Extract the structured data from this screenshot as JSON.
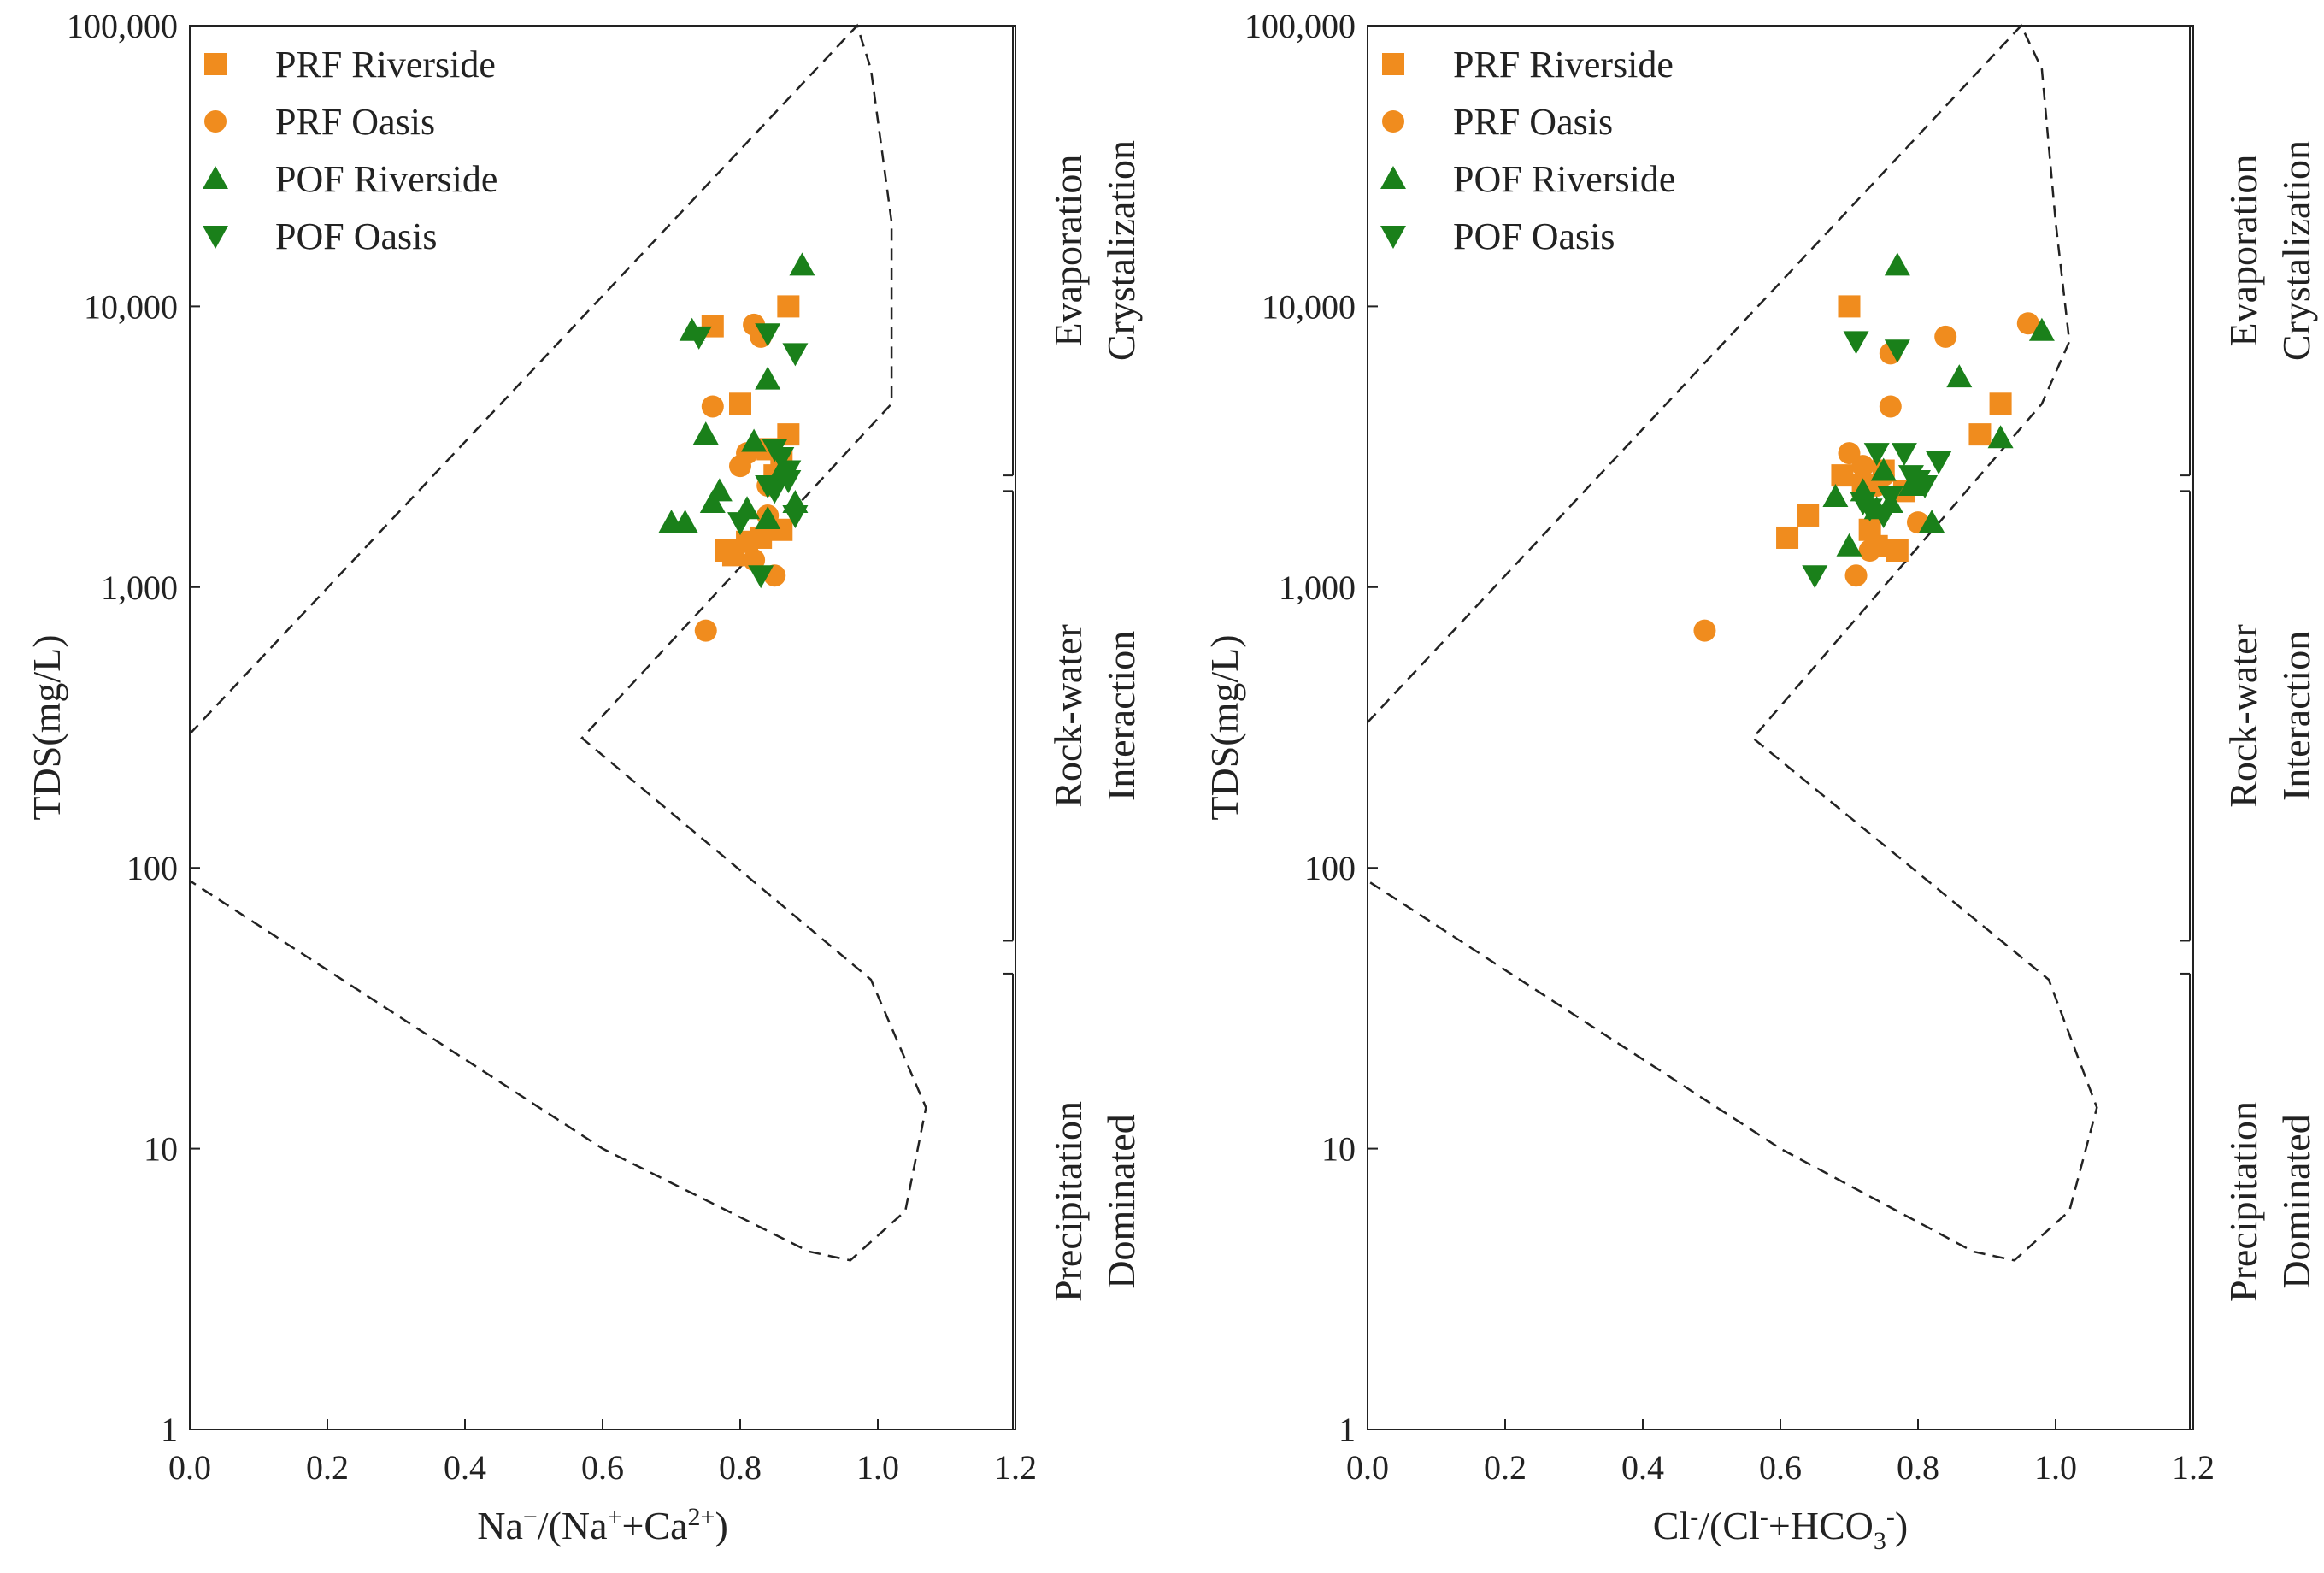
{
  "colors": {
    "orange": "#f08c1e",
    "green": "#1a801a",
    "axis": "#222222",
    "dash": "#222222"
  },
  "y_ticks": [
    1,
    10,
    100,
    1000,
    10000,
    100000
  ],
  "y_tick_labels": [
    "1",
    "10",
    "100",
    "1,000",
    "10,000",
    "100,000"
  ],
  "x_ticks": [
    0,
    0.2,
    0.4,
    0.6,
    0.8,
    1.0,
    1.2
  ],
  "x_tick_labels": [
    "0.0",
    "0.2",
    "0.4",
    "0.6",
    "0.8",
    "1.0",
    "1.2"
  ],
  "legend": [
    {
      "label": "PRF Riverside",
      "marker": "square",
      "color": "#f08c1e"
    },
    {
      "label": "PRF Oasis",
      "marker": "circle",
      "color": "#f08c1e"
    },
    {
      "label": "POF Riverside",
      "marker": "triangle-up",
      "color": "#1a801a"
    },
    {
      "label": "POF Oasis",
      "marker": "triangle-down",
      "color": "#1a801a"
    }
  ],
  "zones": [
    {
      "line1": "Evaporation",
      "line2": "Crystalization",
      "range": [
        2500,
        100000
      ]
    },
    {
      "line1": "Rock-water",
      "line2": "Interaction",
      "range": [
        55,
        2200
      ]
    },
    {
      "line1": "Precipitation",
      "line2": "Dominated",
      "range": [
        1,
        42
      ]
    }
  ],
  "chart_data": [
    {
      "type": "scatter",
      "ylabel": "TDS(mg/L)",
      "xlabel": {
        "base": "Na",
        "sup1": "−",
        "mid": "/(Na",
        "sup2": "+",
        "mid2": "+Ca",
        "sup3": "2+",
        "end": ")"
      },
      "xlim": [
        0,
        1.2
      ],
      "ylim": [
        1,
        100000
      ],
      "yscale": "log",
      "envelope": [
        [
          0.0,
          300
        ],
        [
          0.97,
          100000
        ],
        [
          0.99,
          70000
        ],
        [
          1.02,
          20000
        ],
        [
          1.02,
          4500
        ],
        [
          0.57,
          290
        ],
        [
          0.99,
          40
        ],
        [
          1.07,
          14
        ],
        [
          1.04,
          6
        ],
        [
          0.96,
          4
        ],
        [
          0.9,
          4.3
        ],
        [
          0.6,
          10
        ],
        [
          0.3,
          30
        ],
        [
          0.0,
          90
        ]
      ],
      "series": [
        {
          "name": "PRF Riverside",
          "marker": "square",
          "x": [
            0.76,
            0.87,
            0.8,
            0.87,
            0.84,
            0.78,
            0.79,
            0.81,
            0.86,
            0.83,
            0.85,
            0.86
          ],
          "y": [
            8500,
            10000,
            4500,
            3500,
            3100,
            1350,
            1300,
            1450,
            1600,
            1500,
            2500,
            2800
          ]
        },
        {
          "name": "PRF Oasis",
          "marker": "circle",
          "x": [
            0.82,
            0.83,
            0.76,
            0.81,
            0.8,
            0.84,
            0.78,
            0.82,
            0.85,
            0.75,
            0.86,
            0.84
          ],
          "y": [
            8600,
            7800,
            4400,
            3000,
            2700,
            2300,
            1350,
            1250,
            1100,
            700,
            2600,
            1800
          ]
        },
        {
          "name": "POF Riverside",
          "marker": "triangle-up",
          "x": [
            0.89,
            0.73,
            0.75,
            0.84,
            0.76,
            0.77,
            0.82,
            0.86,
            0.7,
            0.72,
            0.81,
            0.88,
            0.84
          ],
          "y": [
            14000,
            8200,
            3500,
            5500,
            2000,
            2200,
            3300,
            2600,
            1700,
            1700,
            1900,
            2000,
            1750
          ]
        },
        {
          "name": "POF Oasis",
          "marker": "triangle-down",
          "x": [
            0.74,
            0.84,
            0.88,
            0.85,
            0.86,
            0.87,
            0.84,
            0.88,
            0.83,
            0.87,
            0.85,
            0.8
          ],
          "y": [
            7800,
            8000,
            6800,
            3100,
            2900,
            2400,
            2300,
            1800,
            1100,
            2600,
            2200,
            1700
          ]
        }
      ]
    },
    {
      "type": "scatter",
      "ylabel": "TDS(mg/L)",
      "xlabel": {
        "base": "Cl",
        "sup1": "-",
        "mid": "/(Cl",
        "sup2": "-",
        "mid2": "+HCO",
        "sub3": "3",
        "sup3": "-",
        "end": ")"
      },
      "xlim": [
        0,
        1.2
      ],
      "ylim": [
        1,
        100000
      ],
      "yscale": "log",
      "envelope": [
        [
          0.0,
          330
        ],
        [
          0.95,
          100000
        ],
        [
          0.98,
          70000
        ],
        [
          1.0,
          20000
        ],
        [
          1.02,
          7500
        ],
        [
          0.98,
          4500
        ],
        [
          0.56,
          290
        ],
        [
          0.99,
          40
        ],
        [
          1.06,
          14
        ],
        [
          1.02,
          6
        ],
        [
          0.94,
          4
        ],
        [
          0.88,
          4.3
        ],
        [
          0.6,
          10
        ],
        [
          0.3,
          30
        ],
        [
          0.0,
          90
        ]
      ],
      "series": [
        {
          "name": "PRF Riverside",
          "marker": "square",
          "x": [
            0.7,
            0.92,
            0.89,
            0.64,
            0.61,
            0.74,
            0.77,
            0.69,
            0.72,
            0.75,
            0.78,
            0.73
          ],
          "y": [
            10000,
            4500,
            3500,
            1800,
            1500,
            1400,
            1350,
            2500,
            2300,
            2600,
            2200,
            1600
          ]
        },
        {
          "name": "PRF Oasis",
          "marker": "circle",
          "x": [
            0.96,
            0.84,
            0.76,
            0.76,
            0.7,
            0.72,
            0.71,
            0.73,
            0.8,
            0.49,
            0.75,
            0.74
          ],
          "y": [
            8700,
            7800,
            6800,
            4400,
            3000,
            2700,
            1100,
            1350,
            1700,
            700,
            2500,
            2300
          ]
        },
        {
          "name": "POF Riverside",
          "marker": "triangle-up",
          "x": [
            0.77,
            0.98,
            0.92,
            0.86,
            0.82,
            0.68,
            0.72,
            0.75,
            0.74,
            0.79,
            0.7,
            0.76
          ],
          "y": [
            14000,
            8200,
            3400,
            5600,
            1700,
            2100,
            2200,
            2600,
            1900,
            2300,
            1400,
            2000
          ]
        },
        {
          "name": "POF Oasis",
          "marker": "triangle-down",
          "x": [
            0.71,
            0.77,
            0.74,
            0.78,
            0.8,
            0.81,
            0.76,
            0.75,
            0.65,
            0.83,
            0.72,
            0.79,
            0.73
          ],
          "y": [
            7500,
            7000,
            3000,
            3000,
            2400,
            2300,
            2100,
            1800,
            1100,
            2800,
            2000,
            2500,
            1900
          ]
        }
      ]
    }
  ]
}
